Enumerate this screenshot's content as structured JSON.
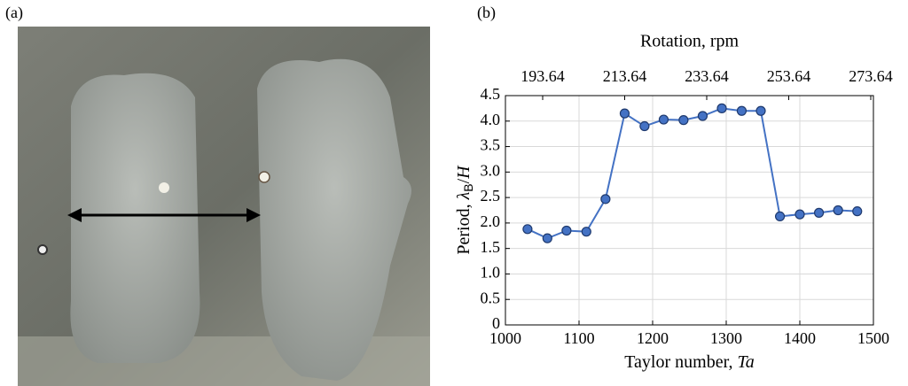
{
  "panel_labels": [
    "(a)",
    "(b)"
  ],
  "chart_data": {
    "type": "line",
    "title": "Rotation, rpm",
    "xlabel": {
      "text": "Taylor number, ",
      "symbol": "Ta"
    },
    "ylabel": {
      "text": "Period, ",
      "symbol": "λ",
      "subscript": "B",
      "rest": "/",
      "denominator": "H"
    },
    "x": [
      1030,
      1057,
      1083,
      1110,
      1136,
      1162,
      1189,
      1215,
      1242,
      1268,
      1294,
      1321,
      1347,
      1373,
      1400,
      1426,
      1452,
      1478
    ],
    "values": [
      1.88,
      1.7,
      1.85,
      1.83,
      2.47,
      4.15,
      3.9,
      4.03,
      4.02,
      4.1,
      4.25,
      4.2,
      4.2,
      2.13,
      2.17,
      2.2,
      2.25,
      2.23
    ],
    "color": "#4472c4",
    "xlim": [
      1000,
      1500
    ],
    "xticks": [
      1000,
      1100,
      1200,
      1300,
      1400,
      1500
    ],
    "ylim": [
      0,
      4.5
    ],
    "yticks": [
      0,
      0.5,
      {
        "value": 1,
        "label": "1.0"
      },
      1.5,
      {
        "value": 2,
        "label": "2.0"
      },
      2.5,
      {
        "value": 3,
        "label": "3.0"
      },
      3.5,
      {
        "value": 4,
        "label": "4.0"
      },
      4.5
    ],
    "x2lim": [
      184.56,
      274.29
    ],
    "x2ticks": [
      193.64,
      213.64,
      233.64,
      253.64,
      273.64
    ],
    "grid": true
  }
}
